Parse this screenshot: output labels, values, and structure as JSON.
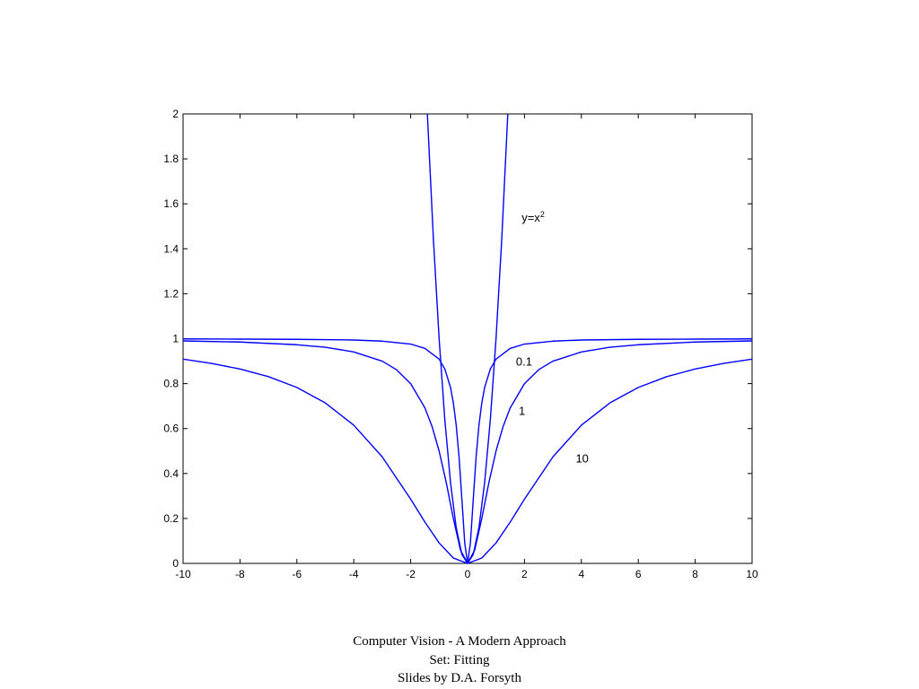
{
  "chart_data": {
    "type": "line",
    "title": "",
    "xlabel": "",
    "ylabel": "",
    "xlim": [
      -10,
      10
    ],
    "ylim": [
      0,
      2
    ],
    "x_ticks": [
      -10,
      -8,
      -6,
      -4,
      -2,
      0,
      2,
      4,
      6,
      8,
      10
    ],
    "y_ticks": [
      0,
      0.2,
      0.4,
      0.6,
      0.8,
      1,
      1.2,
      1.4,
      1.6,
      1.8,
      2
    ],
    "x_tick_labels": [
      "-10",
      "-8",
      "-6",
      "-4",
      "-2",
      "0",
      "2",
      "4",
      "6",
      "8",
      "10"
    ],
    "y_tick_labels": [
      "0",
      "0.2",
      "0.4",
      "0.6",
      "0.8",
      "1",
      "1.2",
      "1.4",
      "1.6",
      "1.8",
      "2"
    ],
    "grid": false,
    "line_color": "#0000ff",
    "series": [
      {
        "label": "y=x2",
        "label_x": 1.9,
        "label_y": 1.52,
        "x": [
          -1.414,
          -1.2,
          -1.0,
          -0.8,
          -0.6,
          -0.4,
          -0.2,
          0,
          0.2,
          0.4,
          0.6,
          0.8,
          1.0,
          1.2,
          1.414
        ],
        "y": [
          2.0,
          1.44,
          1.0,
          0.64,
          0.36,
          0.16,
          0.04,
          0,
          0.04,
          0.16,
          0.36,
          0.64,
          1.0,
          1.44,
          2.0
        ]
      },
      {
        "label": "0.1",
        "label_x": 1.7,
        "label_y": 0.88,
        "x": [
          -10,
          -8,
          -6,
          -4,
          -3,
          -2,
          -1.5,
          -1,
          -0.8,
          -0.6,
          -0.5,
          -0.4,
          -0.3,
          -0.2,
          -0.1,
          0,
          0.1,
          0.2,
          0.3,
          0.4,
          0.5,
          0.6,
          0.8,
          1,
          1.5,
          2,
          3,
          4,
          6,
          8,
          10
        ],
        "y": [
          0.999,
          0.998,
          0.997,
          0.994,
          0.989,
          0.976,
          0.957,
          0.909,
          0.865,
          0.783,
          0.714,
          0.615,
          0.474,
          0.286,
          0.091,
          0,
          0.091,
          0.286,
          0.474,
          0.615,
          0.714,
          0.783,
          0.865,
          0.909,
          0.957,
          0.976,
          0.989,
          0.994,
          0.997,
          0.998,
          0.999
        ]
      },
      {
        "label": "1",
        "label_x": 1.8,
        "label_y": 0.66,
        "x": [
          -10,
          -8,
          -6,
          -5,
          -4,
          -3,
          -2.5,
          -2,
          -1.5,
          -1.25,
          -1,
          -0.75,
          -0.5,
          -0.25,
          0,
          0.25,
          0.5,
          0.75,
          1,
          1.25,
          1.5,
          2,
          2.5,
          3,
          4,
          5,
          6,
          8,
          10
        ],
        "y": [
          0.99,
          0.985,
          0.973,
          0.962,
          0.941,
          0.9,
          0.862,
          0.8,
          0.692,
          0.61,
          0.5,
          0.36,
          0.2,
          0.059,
          0,
          0.059,
          0.2,
          0.36,
          0.5,
          0.61,
          0.692,
          0.8,
          0.862,
          0.9,
          0.941,
          0.962,
          0.973,
          0.985,
          0.99
        ]
      },
      {
        "label": "10",
        "label_x": 3.8,
        "label_y": 0.45,
        "x": [
          -10,
          -9,
          -8,
          -7,
          -6,
          -5,
          -4,
          -3,
          -2,
          -1.5,
          -1,
          -0.5,
          0,
          0.5,
          1,
          1.5,
          2,
          3,
          4,
          5,
          6,
          7,
          8,
          9,
          10
        ],
        "y": [
          0.909,
          0.89,
          0.865,
          0.831,
          0.783,
          0.714,
          0.615,
          0.474,
          0.286,
          0.184,
          0.091,
          0.024,
          0,
          0.024,
          0.091,
          0.184,
          0.286,
          0.474,
          0.615,
          0.714,
          0.783,
          0.831,
          0.865,
          0.89,
          0.909
        ]
      }
    ]
  },
  "footer": {
    "line1": "Computer Vision - A Modern Approach",
    "line2": "Set:  Fitting",
    "line3": "Slides by D.A. Forsyth"
  }
}
